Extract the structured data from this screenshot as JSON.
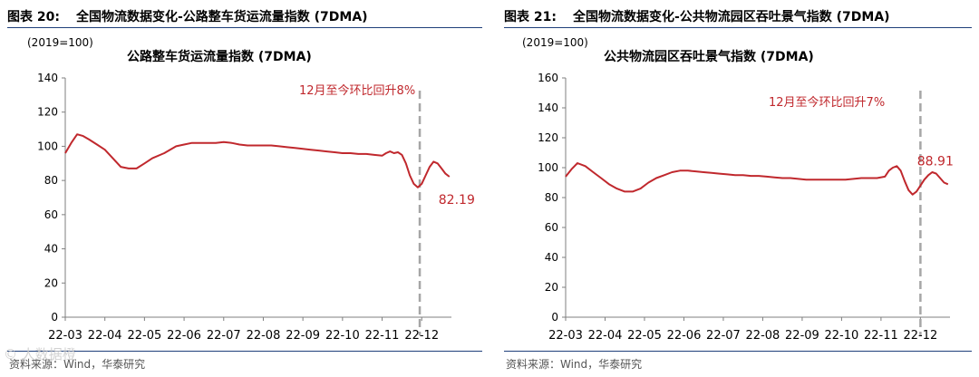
{
  "panels": [
    {
      "figure_label": "图表 20:",
      "figure_title": "全国物流数据变化-公路整车货运流量指数 (7DMA)",
      "source": "资料来源：Wind，华泰研究",
      "watermark": "© 人数据橙",
      "chart_data": {
        "type": "line",
        "title": "公路整车货运流量指数 (7DMA)",
        "unit_label": "(2019=100)",
        "ylim": [
          0,
          140
        ],
        "yticks": [
          0,
          20,
          40,
          60,
          80,
          100,
          120,
          140
        ],
        "xticks": [
          "22-03",
          "22-04",
          "22-05",
          "22-06",
          "22-07",
          "22-08",
          "22-09",
          "22-10",
          "22-11",
          "22-12"
        ],
        "xlim": [
          0,
          9.75
        ],
        "line_color": "#c0282d",
        "grid": false,
        "annotation": {
          "text": "12月至今环比回升8%",
          "color": "#c0282d"
        },
        "end_label": "82.19",
        "vline_x": 8.95,
        "series": [
          {
            "x": [
              0,
              0.15,
              0.3,
              0.45,
              0.6,
              0.8,
              1.0,
              1.2,
              1.4,
              1.6,
              1.8,
              2.0,
              2.2,
              2.5,
              2.8,
              3.0,
              3.2,
              3.4,
              3.6,
              3.8,
              4.0,
              4.2,
              4.4,
              4.6,
              4.8,
              5.0,
              5.2,
              5.4,
              5.6,
              5.8,
              6.0,
              6.2,
              6.4,
              6.6,
              6.8,
              7.0,
              7.2,
              7.4,
              7.6,
              7.8,
              8.0,
              8.1,
              8.2,
              8.3,
              8.4,
              8.5,
              8.6,
              8.7,
              8.8,
              8.9,
              9.0,
              9.1,
              9.2,
              9.3,
              9.4,
              9.5,
              9.6,
              9.7
            ],
            "y": [
              96,
              102,
              107,
              106,
              104,
              101,
              98,
              93,
              88,
              87,
              87,
              90,
              93,
              96,
              100,
              101,
              102,
              102,
              102,
              102,
              102.5,
              102,
              101,
              100.5,
              100.5,
              100.5,
              100.5,
              100,
              99.5,
              99,
              98.5,
              98,
              97.5,
              97,
              96.5,
              96,
              96,
              95.5,
              95.5,
              95,
              94.5,
              96,
              97,
              96,
              96.5,
              95,
              90,
              83,
              78,
              76,
              78,
              83,
              88,
              91,
              90,
              87,
              84,
              82.19
            ]
          }
        ]
      }
    },
    {
      "figure_label": "图表 21:",
      "figure_title": "全国物流数据变化-公共物流园区吞吐景气指数 (7DMA)",
      "source": "资料来源：Wind，华泰研究",
      "chart_data": {
        "type": "line",
        "title": "公共物流园区吞吐景气指数 (7DMA)",
        "unit_label": "(2019=100)",
        "ylim": [
          0,
          160
        ],
        "yticks": [
          0,
          20,
          40,
          60,
          80,
          100,
          120,
          140,
          160
        ],
        "xticks": [
          "22-03",
          "22-04",
          "22-05",
          "22-06",
          "22-07",
          "22-08",
          "22-09",
          "22-10",
          "22-11",
          "22-12"
        ],
        "xlim": [
          0,
          9.75
        ],
        "line_color": "#c0282d",
        "grid": false,
        "annotation": {
          "text": "12月至今环比回升7%",
          "color": "#c0282d"
        },
        "end_label": "88.91",
        "vline_x": 9.0,
        "series": [
          {
            "x": [
              0,
              0.15,
              0.3,
              0.5,
              0.7,
              0.9,
              1.1,
              1.3,
              1.5,
              1.7,
              1.9,
              2.1,
              2.3,
              2.5,
              2.7,
              2.9,
              3.1,
              3.3,
              3.5,
              3.7,
              3.9,
              4.1,
              4.3,
              4.5,
              4.7,
              4.9,
              5.1,
              5.3,
              5.5,
              5.7,
              5.9,
              6.1,
              6.3,
              6.5,
              6.7,
              6.9,
              7.1,
              7.3,
              7.5,
              7.7,
              7.9,
              8.1,
              8.2,
              8.3,
              8.4,
              8.5,
              8.6,
              8.7,
              8.8,
              8.9,
              9.0,
              9.1,
              9.2,
              9.3,
              9.4,
              9.5,
              9.6,
              9.7
            ],
            "y": [
              94,
              99,
              103,
              101,
              97,
              93,
              89,
              86,
              84,
              84,
              86,
              90,
              93,
              95,
              97,
              98,
              98,
              97.5,
              97,
              96.5,
              96,
              95.5,
              95,
              95,
              94.5,
              94.5,
              94,
              93.5,
              93,
              93,
              92.5,
              92,
              92,
              92,
              92,
              92,
              92,
              92.5,
              93,
              93,
              93,
              94,
              98,
              100,
              101,
              98,
              91,
              85,
              82,
              84,
              88,
              92,
              95,
              97,
              96,
              93,
              90,
              88.91
            ]
          }
        ]
      }
    }
  ]
}
